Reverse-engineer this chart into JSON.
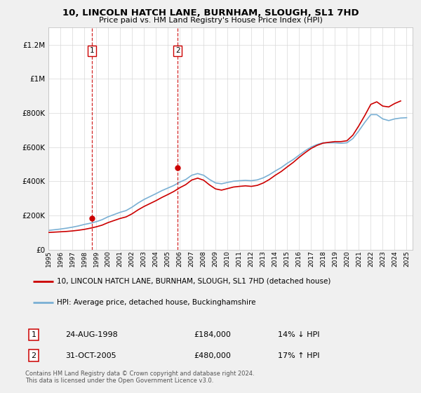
{
  "title": "10, LINCOLN HATCH LANE, BURNHAM, SLOUGH, SL1 7HD",
  "subtitle": "Price paid vs. HM Land Registry's House Price Index (HPI)",
  "ylim": [
    0,
    1300000
  ],
  "xlim_start": 1995.0,
  "xlim_end": 2025.5,
  "yticks": [
    0,
    200000,
    400000,
    600000,
    800000,
    1000000,
    1200000
  ],
  "ytick_labels": [
    "£0",
    "£200K",
    "£400K",
    "£600K",
    "£800K",
    "£1M",
    "£1.2M"
  ],
  "xtick_years": [
    1995,
    1996,
    1997,
    1998,
    1999,
    2000,
    2001,
    2002,
    2003,
    2004,
    2005,
    2006,
    2007,
    2008,
    2009,
    2010,
    2011,
    2012,
    2013,
    2014,
    2015,
    2016,
    2017,
    2018,
    2019,
    2020,
    2021,
    2022,
    2023,
    2024,
    2025
  ],
  "red_line_color": "#cc0000",
  "blue_line_color": "#7ab0d4",
  "background_color": "#f0f0f0",
  "plot_bg_color": "#ffffff",
  "transaction1": {
    "year": 1998.65,
    "price": 184000,
    "label": "1"
  },
  "transaction2": {
    "year": 2005.83,
    "price": 480000,
    "label": "2"
  },
  "legend_red_label": "10, LINCOLN HATCH LANE, BURNHAM, SLOUGH, SL1 7HD (detached house)",
  "legend_blue_label": "HPI: Average price, detached house, Buckinghamshire",
  "table_row1": [
    "1",
    "24-AUG-1998",
    "£184,000",
    "14% ↓ HPI"
  ],
  "table_row2": [
    "2",
    "31-OCT-2005",
    "£480,000",
    "17% ↑ HPI"
  ],
  "footer": "Contains HM Land Registry data © Crown copyright and database right 2024.\nThis data is licensed under the Open Government Licence v3.0.",
  "hpi_years": [
    1995.0,
    1995.5,
    1996.0,
    1996.5,
    1997.0,
    1997.5,
    1998.0,
    1998.5,
    1999.0,
    1999.5,
    2000.0,
    2000.5,
    2001.0,
    2001.5,
    2002.0,
    2002.5,
    2003.0,
    2003.5,
    2004.0,
    2004.5,
    2005.0,
    2005.5,
    2006.0,
    2006.5,
    2007.0,
    2007.5,
    2008.0,
    2008.5,
    2009.0,
    2009.5,
    2010.0,
    2010.5,
    2011.0,
    2011.5,
    2012.0,
    2012.5,
    2013.0,
    2013.5,
    2014.0,
    2014.5,
    2015.0,
    2015.5,
    2016.0,
    2016.5,
    2017.0,
    2017.5,
    2018.0,
    2018.5,
    2019.0,
    2019.5,
    2020.0,
    2020.5,
    2021.0,
    2021.5,
    2022.0,
    2022.5,
    2023.0,
    2023.5,
    2024.0,
    2024.5,
    2025.0
  ],
  "hpi_values": [
    112000,
    116000,
    120000,
    125000,
    131000,
    138000,
    147000,
    154000,
    163000,
    175000,
    192000,
    205000,
    218000,
    228000,
    248000,
    272000,
    293000,
    310000,
    327000,
    345000,
    360000,
    375000,
    395000,
    410000,
    435000,
    445000,
    435000,
    410000,
    390000,
    385000,
    393000,
    400000,
    403000,
    405000,
    403000,
    408000,
    420000,
    438000,
    460000,
    480000,
    505000,
    527000,
    553000,
    578000,
    600000,
    615000,
    625000,
    625000,
    625000,
    622000,
    625000,
    650000,
    695000,
    745000,
    790000,
    790000,
    765000,
    755000,
    765000,
    770000,
    772000
  ],
  "red_years": [
    1995.0,
    1995.5,
    1996.0,
    1996.5,
    1997.0,
    1997.5,
    1998.0,
    1998.5,
    1999.0,
    1999.5,
    2000.0,
    2000.5,
    2001.0,
    2001.5,
    2002.0,
    2002.5,
    2003.0,
    2003.5,
    2004.0,
    2004.5,
    2005.0,
    2005.5,
    2006.0,
    2006.5,
    2007.0,
    2007.5,
    2008.0,
    2008.5,
    2009.0,
    2009.5,
    2010.0,
    2010.5,
    2011.0,
    2011.5,
    2012.0,
    2012.5,
    2013.0,
    2013.5,
    2014.0,
    2014.5,
    2015.0,
    2015.5,
    2016.0,
    2016.5,
    2017.0,
    2017.5,
    2018.0,
    2018.5,
    2019.0,
    2019.5,
    2020.0,
    2020.5,
    2021.0,
    2021.5,
    2022.0,
    2022.5,
    2023.0,
    2023.5,
    2024.0,
    2024.5
  ],
  "red_values": [
    100000,
    102000,
    104000,
    106000,
    109000,
    113000,
    118000,
    125000,
    133000,
    143000,
    158000,
    170000,
    182000,
    191000,
    209000,
    232000,
    252000,
    269000,
    286000,
    305000,
    322000,
    340000,
    362000,
    380000,
    407000,
    418000,
    406000,
    378000,
    355000,
    348000,
    357000,
    366000,
    370000,
    373000,
    370000,
    376000,
    390000,
    410000,
    435000,
    457000,
    484000,
    510000,
    540000,
    567000,
    592000,
    610000,
    623000,
    628000,
    632000,
    632000,
    637000,
    670000,
    725000,
    785000,
    850000,
    865000,
    840000,
    835000,
    855000,
    870000
  ]
}
